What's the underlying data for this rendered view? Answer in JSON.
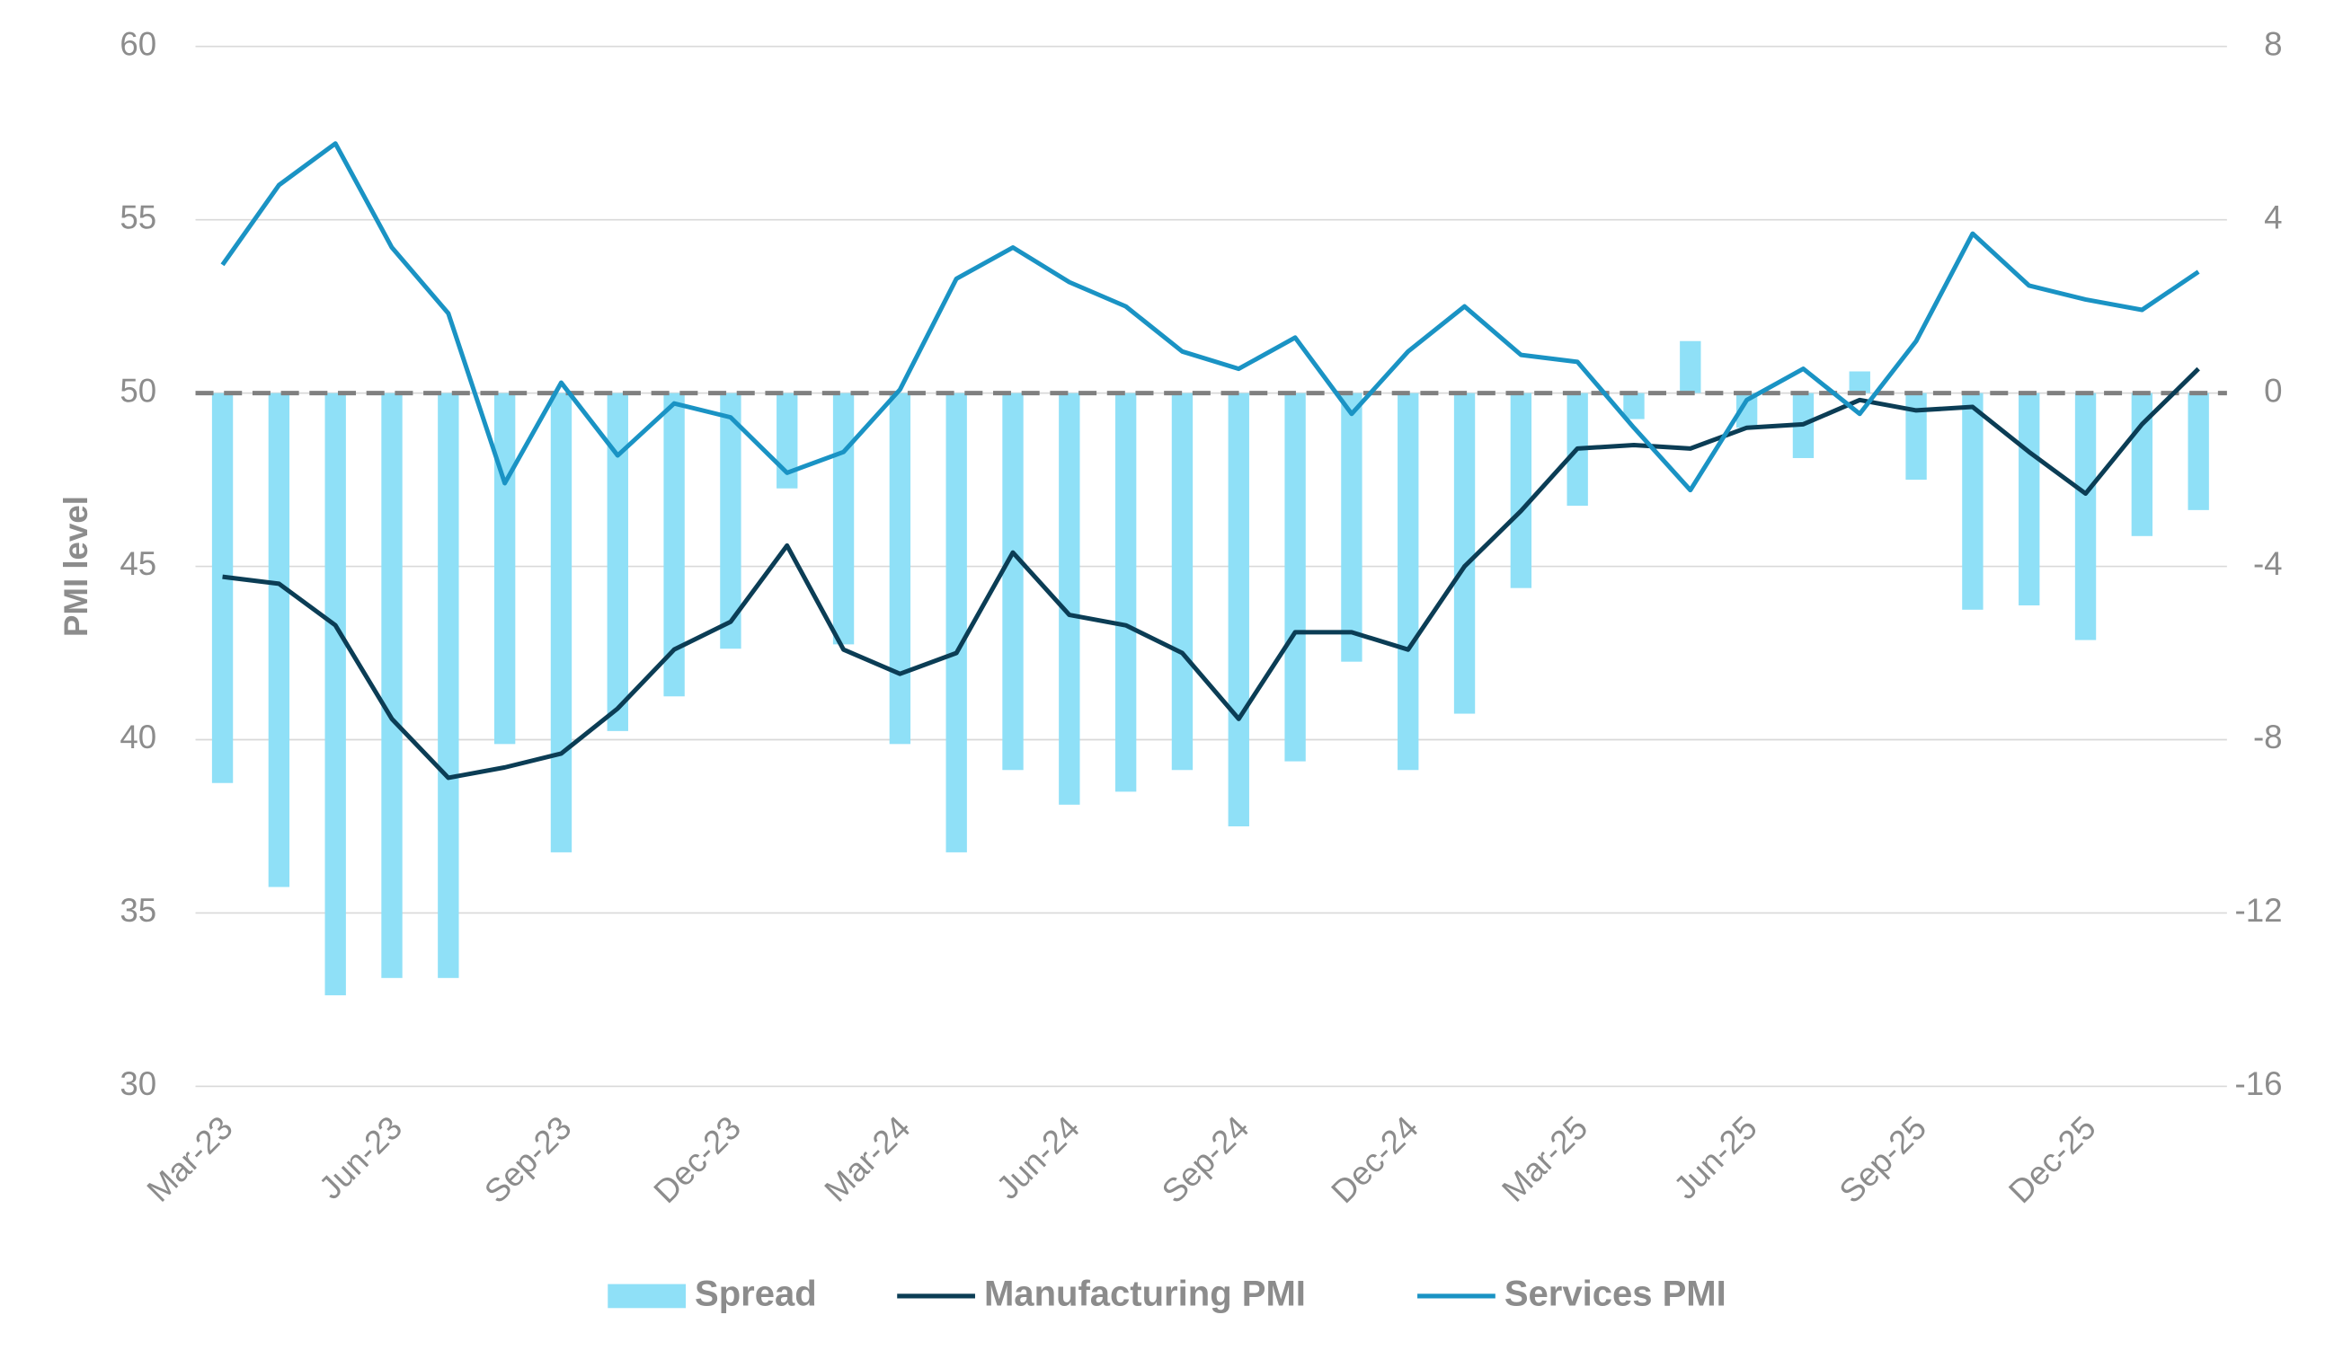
{
  "chart_data": {
    "type": "bar-line",
    "y_label": "PMI level",
    "categories": [
      "Mar-23",
      null,
      null,
      "Jun-23",
      null,
      null,
      "Sep-23",
      null,
      null,
      "Dec-23",
      null,
      null,
      "Mar-24",
      null,
      null,
      "Jun-24",
      null,
      null,
      "Sep-24",
      null,
      null,
      "Dec-24",
      null,
      null,
      "Mar-25",
      null,
      null,
      "Jun-25",
      null,
      null,
      "Sep-25",
      null,
      null,
      "Dec-25",
      null,
      null
    ],
    "series": [
      {
        "name": "Spread",
        "type": "bar",
        "axis": "y2",
        "color": "#8fe0f7",
        "values": [
          -9.0,
          -11.4,
          -13.9,
          -13.5,
          -13.5,
          -8.1,
          -10.6,
          -7.8,
          -7.0,
          -5.9,
          -2.2,
          -5.8,
          -8.1,
          -10.6,
          -8.7,
          -9.5,
          -9.2,
          -8.7,
          -10.0,
          -8.5,
          -6.2,
          -8.7,
          -7.4,
          -4.5,
          -2.6,
          -0.6,
          1.2,
          -0.8,
          -1.5,
          0.5,
          -2.0,
          -5.0,
          -4.9,
          -5.7,
          -3.3,
          -2.7
        ]
      },
      {
        "name": "Manufacturing PMI",
        "type": "line",
        "color": "#0b3d55",
        "values": [
          44.7,
          44.5,
          43.3,
          40.6,
          38.9,
          39.2,
          39.6,
          40.9,
          42.6,
          43.4,
          45.6,
          42.6,
          41.9,
          42.5,
          45.4,
          43.6,
          43.3,
          42.5,
          40.6,
          43.1,
          43.1,
          42.6,
          45.0,
          46.6,
          48.4,
          48.5,
          48.4,
          49.0,
          49.1,
          49.8,
          49.5,
          49.6,
          48.3,
          47.1,
          49.1,
          50.7
        ]
      },
      {
        "name": "Services PMI",
        "type": "line",
        "color": "#1a93c4",
        "values": [
          53.7,
          56.0,
          57.2,
          54.2,
          52.3,
          47.4,
          50.3,
          48.2,
          49.7,
          49.3,
          47.7,
          48.3,
          50.1,
          53.3,
          54.2,
          53.2,
          52.5,
          51.2,
          50.7,
          51.6,
          49.4,
          51.2,
          52.5,
          51.1,
          50.9,
          49.0,
          47.2,
          49.8,
          50.7,
          49.4,
          51.5,
          54.6,
          53.1,
          52.7,
          52.4,
          53.5
        ]
      }
    ],
    "ylim": [
      30,
      60
    ],
    "yticks": [
      30,
      35,
      40,
      45,
      50,
      55,
      60
    ],
    "y2lim": [
      -16,
      8
    ],
    "y2ticks": [
      -16,
      -12,
      -8,
      -4,
      0,
      4,
      8
    ],
    "hline": 50,
    "grid": true,
    "legend": "bottom"
  }
}
